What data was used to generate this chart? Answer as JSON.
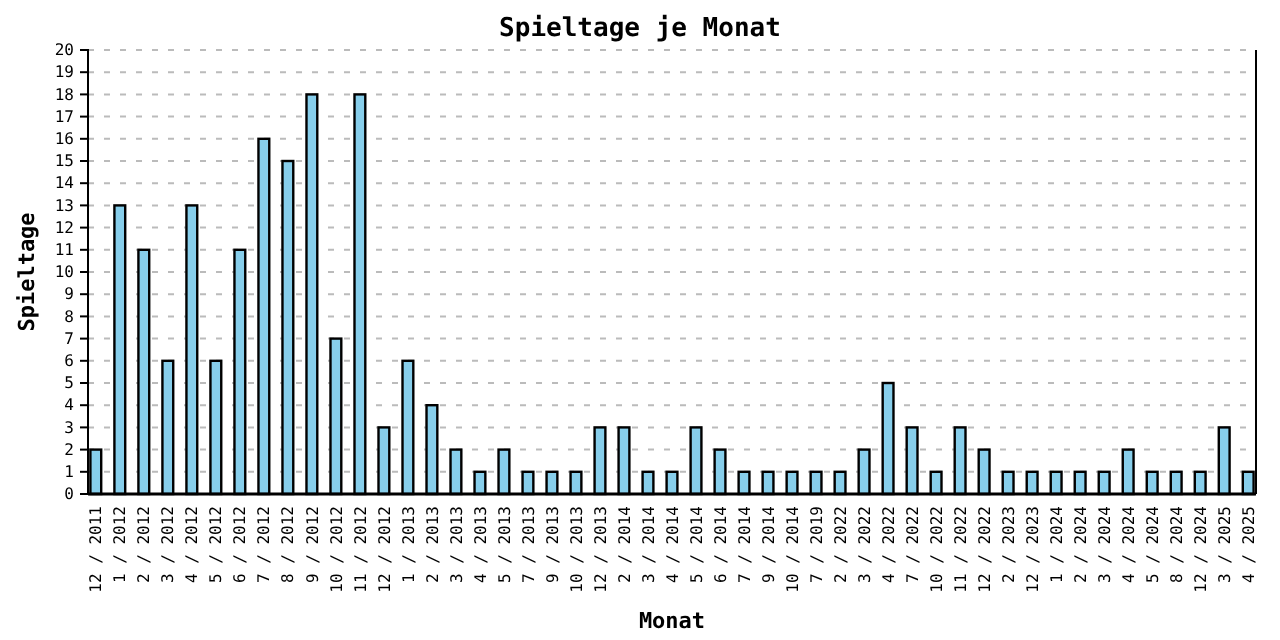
{
  "chart_data": {
    "type": "bar",
    "title": "Spieltage je Monat",
    "xlabel": "Monat",
    "ylabel": "Spieltage",
    "categories": [
      "12 / 2011",
      "1 / 2012",
      "2 / 2012",
      "3 / 2012",
      "4 / 2012",
      "5 / 2012",
      "6 / 2012",
      "7 / 2012",
      "8 / 2012",
      "9 / 2012",
      "10 / 2012",
      "11 / 2012",
      "12 / 2012",
      "1 / 2013",
      "2 / 2013",
      "3 / 2013",
      "4 / 2013",
      "5 / 2013",
      "7 / 2013",
      "9 / 2013",
      "10 / 2013",
      "12 / 2013",
      "2 / 2014",
      "3 / 2014",
      "4 / 2014",
      "5 / 2014",
      "6 / 2014",
      "7 / 2014",
      "9 / 2014",
      "10 / 2014",
      "7 / 2019",
      "2 / 2022",
      "3 / 2022",
      "4 / 2022",
      "7 / 2022",
      "10 / 2022",
      "11 / 2022",
      "12 / 2022",
      "2 / 2023",
      "12 / 2023",
      "1 / 2024",
      "2 / 2024",
      "3 / 2024",
      "4 / 2024",
      "5 / 2024",
      "8 / 2024",
      "12 / 2024",
      "3 / 2025",
      "4 / 2025"
    ],
    "values": [
      2,
      13,
      11,
      6,
      13,
      6,
      11,
      16,
      15,
      18,
      7,
      18,
      3,
      6,
      4,
      2,
      1,
      2,
      1,
      1,
      1,
      3,
      3,
      1,
      1,
      3,
      2,
      1,
      1,
      1,
      1,
      1,
      2,
      5,
      3,
      1,
      3,
      2,
      1,
      1,
      1,
      1,
      1,
      2,
      1,
      1,
      1,
      3,
      1
    ],
    "color": "#87ceeb",
    "ylim": [
      0,
      20
    ],
    "yticks": [
      0,
      1,
      2,
      3,
      4,
      5,
      6,
      7,
      8,
      9,
      10,
      11,
      12,
      13,
      14,
      15,
      16,
      17,
      18,
      19,
      20
    ],
    "grid": "y"
  }
}
